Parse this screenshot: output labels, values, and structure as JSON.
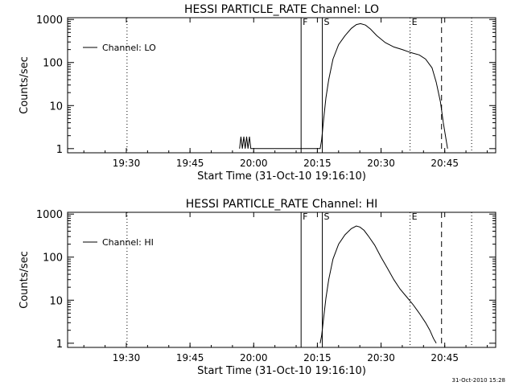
{
  "footer": {
    "timestamp": "31-Oct-2010 15:28"
  },
  "chart_data": [
    {
      "type": "line",
      "title": "HESSI PARTICLE_RATE Channel: LO",
      "xlabel": "Start Time (31-Oct-10 19:16:10)",
      "ylabel": "Counts/sec",
      "yscale": "log",
      "xlim": [
        "19:16:10",
        "20:57:00"
      ],
      "ylim": [
        0.8,
        1100
      ],
      "x_ticks": [
        "19:30",
        "19:45",
        "20:00",
        "20:15",
        "20:30",
        "20:45"
      ],
      "y_ticks": [
        "1",
        "10",
        "100",
        "1000"
      ],
      "legend": {
        "label": "Channel: LO",
        "placement": "top-left"
      },
      "markers": [
        {
          "label": "",
          "time": "19:30:10",
          "style": "dotted"
        },
        {
          "label": "F",
          "time": "20:11:10",
          "style": "solid"
        },
        {
          "label": "S",
          "time": "20:16:10",
          "style": "solid"
        },
        {
          "label": "E",
          "time": "20:36:50",
          "style": "dotted"
        },
        {
          "label": "",
          "time": "20:44:15",
          "style": "dashed"
        },
        {
          "label": "",
          "time": "20:51:20",
          "style": "dotted"
        }
      ],
      "series": [
        {
          "name": "Channel: LO",
          "x": [
            "19:56:40",
            "19:57:00",
            "19:57:20",
            "19:57:40",
            "19:58:00",
            "19:58:20",
            "19:58:40",
            "19:59:00",
            "19:59:20",
            "19:59:40",
            "20:15:40",
            "20:16:00",
            "20:16:30",
            "20:17:00",
            "20:17:40",
            "20:18:40",
            "20:20:00",
            "20:21:30",
            "20:23:00",
            "20:24:10",
            "20:25:10",
            "20:26:20",
            "20:27:30",
            "20:29:00",
            "20:31:00",
            "20:33:00",
            "20:35:00",
            "20:37:00",
            "20:39:00",
            "20:40:30",
            "20:42:00",
            "20:43:00",
            "20:44:00",
            "20:44:40",
            "20:45:20",
            "20:45:40"
          ],
          "values": [
            1.0,
            1.9,
            1.0,
            1.9,
            1.0,
            1.9,
            1.0,
            1.9,
            1.0,
            1.0,
            1.0,
            1.6,
            5.0,
            15,
            40,
            120,
            260,
            420,
            620,
            760,
            800,
            740,
            600,
            420,
            290,
            230,
            200,
            170,
            150,
            120,
            75,
            35,
            12,
            4,
            1.6,
            1.0
          ]
        }
      ]
    },
    {
      "type": "line",
      "title": "HESSI PARTICLE_RATE Channel: HI",
      "xlabel": "Start Time (31-Oct-10 19:16:10)",
      "ylabel": "Counts/sec",
      "yscale": "log",
      "xlim": [
        "19:16:10",
        "20:57:00"
      ],
      "ylim": [
        0.8,
        1100
      ],
      "x_ticks": [
        "19:30",
        "19:45",
        "20:00",
        "20:15",
        "20:30",
        "20:45"
      ],
      "y_ticks": [
        "1",
        "10",
        "100",
        "1000"
      ],
      "legend": {
        "label": "Channel: HI",
        "placement": "top-left"
      },
      "markers": [
        {
          "label": "",
          "time": "19:30:10",
          "style": "dotted"
        },
        {
          "label": "F",
          "time": "20:11:10",
          "style": "solid"
        },
        {
          "label": "S",
          "time": "20:16:10",
          "style": "solid"
        },
        {
          "label": "E",
          "time": "20:36:50",
          "style": "dotted"
        },
        {
          "label": "",
          "time": "20:44:15",
          "style": "dashed"
        },
        {
          "label": "",
          "time": "20:51:20",
          "style": "dotted"
        }
      ],
      "series": [
        {
          "name": "Channel: HI",
          "x": [
            "20:15:40",
            "20:16:00",
            "20:16:30",
            "20:17:00",
            "20:17:40",
            "20:18:40",
            "20:20:00",
            "20:21:30",
            "20:23:00",
            "20:24:10",
            "20:25:00",
            "20:26:00",
            "20:27:00",
            "20:28:30",
            "20:30:00",
            "20:31:30",
            "20:33:00",
            "20:34:30",
            "20:36:00",
            "20:37:30",
            "20:39:00",
            "20:40:30",
            "20:41:30",
            "20:42:20",
            "20:43:00"
          ],
          "values": [
            1.0,
            1.5,
            4.0,
            11,
            30,
            90,
            200,
            330,
            460,
            530,
            500,
            420,
            310,
            190,
            100,
            55,
            30,
            18,
            12,
            8,
            5,
            3,
            2.0,
            1.3,
            1.0
          ]
        }
      ]
    }
  ]
}
